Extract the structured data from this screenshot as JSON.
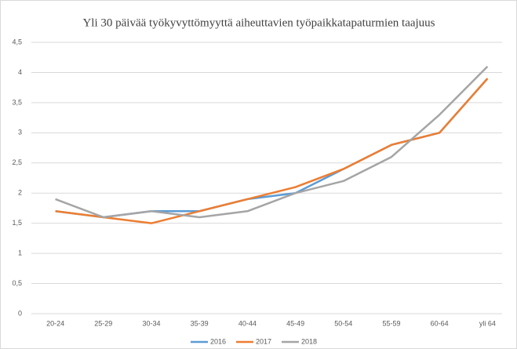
{
  "chart_data": {
    "type": "line",
    "title": "Yli 30 päivää työkyvyttömyyttä aiheuttavien työpaikkatapaturmien taajuus",
    "categories": [
      "20-24",
      "25-29",
      "30-34",
      "35-39",
      "40-44",
      "45-49",
      "50-54",
      "55-59",
      "60-64",
      "yli 64"
    ],
    "series": [
      {
        "name": "2016",
        "color": "#5b9bd5",
        "values": [
          1.7,
          1.6,
          1.7,
          1.7,
          1.9,
          2.0,
          2.4,
          2.8,
          3.0,
          3.9
        ]
      },
      {
        "name": "2017",
        "color": "#ed7d31",
        "values": [
          1.7,
          1.6,
          1.5,
          1.7,
          1.9,
          2.1,
          2.4,
          2.8,
          3.0,
          3.9
        ]
      },
      {
        "name": "2018",
        "color": "#a5a5a5",
        "values": [
          1.9,
          1.6,
          1.7,
          1.6,
          1.7,
          2.0,
          2.2,
          2.6,
          3.3,
          4.1
        ]
      }
    ],
    "ylim": [
      0,
      4.5
    ],
    "yticks": [
      0,
      {
        "value": 0.5,
        "label": "0,5"
      },
      1,
      {
        "value": 1.5,
        "label": "1,5"
      },
      2,
      {
        "value": 2.5,
        "label": "2,5"
      },
      3,
      {
        "value": 3.5,
        "label": "3,5"
      },
      4,
      {
        "value": 4.5,
        "label": "4,5"
      }
    ],
    "grid": true,
    "legend": "bottom"
  }
}
